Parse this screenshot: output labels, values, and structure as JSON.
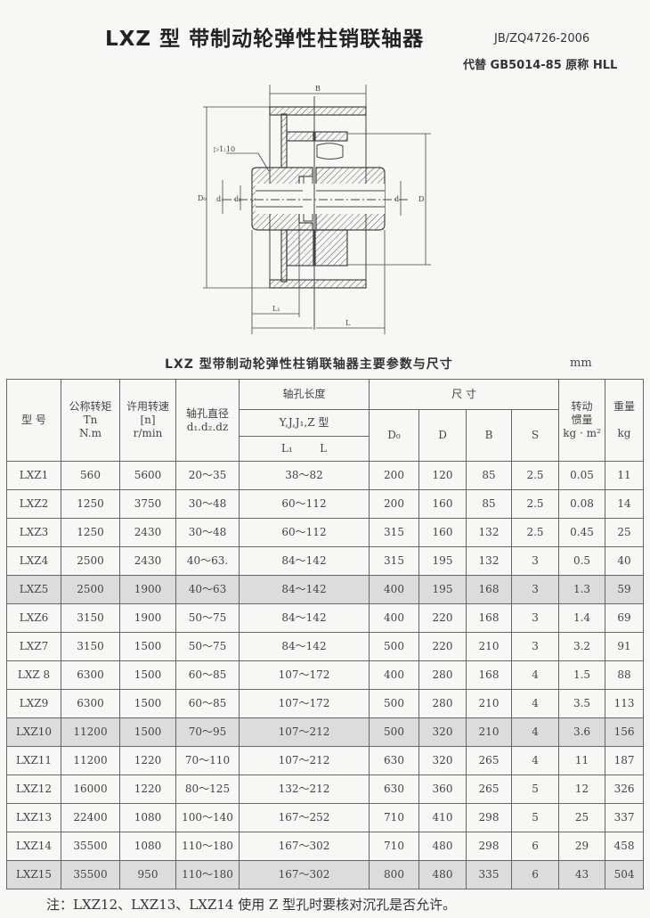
{
  "header": {
    "title": "LXZ 型  带制动轮弹性柱销联轴器",
    "standard": "JB/ZQ4726-2006",
    "replaces": "代替 GB5014-85 原称 HLL"
  },
  "drawing": {
    "labels": {
      "B": "B",
      "taper": "▷1:10",
      "D0": "D₀",
      "d1": "d₁",
      "d2": "d₂",
      "d": "d",
      "D": "D",
      "L1": "L₁",
      "L": "L"
    }
  },
  "table": {
    "caption": "LXZ 型带制动轮弹性柱销联轴器主要参数与尺寸",
    "unit": "mm",
    "headers": {
      "model": "型 号",
      "torque": [
        "公称转矩",
        "Tn",
        "N.m"
      ],
      "speed": [
        "许用转速",
        "[n]",
        "r/min"
      ],
      "bore": [
        "轴孔直径",
        "d₁.d₂.dz"
      ],
      "bore_length": "轴孔长度",
      "bore_type": "Y,J,J₁,Z 型",
      "bore_len_sub": "L₁        L",
      "dimensions": "尺      寸",
      "D0": "D₀",
      "D": "D",
      "B": "B",
      "S": "S",
      "inertia": [
        "转动",
        "惯量",
        "kg · m²"
      ],
      "weight": [
        "重量",
        "kg"
      ]
    },
    "rows": [
      [
        "LXZ1",
        "560",
        "5600",
        "20～35",
        "38～82",
        "200",
        "120",
        "85",
        "2.5",
        "0.05",
        "11"
      ],
      [
        "LXZ2",
        "1250",
        "3750",
        "30～48",
        "60～112",
        "200",
        "160",
        "85",
        "2.5",
        "0.08",
        "14"
      ],
      [
        "LXZ3",
        "1250",
        "2430",
        "30～48",
        "60～112",
        "315",
        "160",
        "132",
        "2.5",
        "0.45",
        "25"
      ],
      [
        "LXZ4",
        "2500",
        "2430",
        "40～63.",
        "84～142",
        "315",
        "195",
        "132",
        "3",
        "0.5",
        "40"
      ],
      [
        "LXZ5",
        "2500",
        "1900",
        "40～63",
        "84～142",
        "400",
        "195",
        "168",
        "3",
        "1.3",
        "59"
      ],
      [
        "LXZ6",
        "3150",
        "1900",
        "50～75",
        "84～142",
        "400",
        "220",
        "168",
        "3",
        "1.4",
        "69"
      ],
      [
        "LXZ7",
        "3150",
        "1500",
        "50～75",
        "84～142",
        "500",
        "220",
        "210",
        "3",
        "3.2",
        "91"
      ],
      [
        "LXZ 8",
        "6300",
        "1500",
        "60～85",
        "107～172",
        "400",
        "280",
        "168",
        "4",
        "1.5",
        "88"
      ],
      [
        "LXZ9",
        "6300",
        "1500",
        "60～85",
        "107～172",
        "500",
        "280",
        "210",
        "4",
        "3.5",
        "113"
      ],
      [
        "LXZ10",
        "11200",
        "1500",
        "70～95",
        "107～212",
        "500",
        "320",
        "210",
        "4",
        "3.6",
        "156"
      ],
      [
        "LXZ11",
        "11200",
        "1220",
        "70～110",
        "107～212",
        "630",
        "320",
        "265",
        "4",
        "11",
        "187"
      ],
      [
        "LXZ12",
        "16000",
        "1220",
        "80～125",
        "132～212",
        "630",
        "360",
        "265",
        "5",
        "12",
        "326"
      ],
      [
        "LXZ13",
        "22400",
        "1080",
        "100～140",
        "167～252",
        "710",
        "410",
        "298",
        "5",
        "25",
        "337"
      ],
      [
        "LXZ14",
        "35500",
        "1080",
        "110～180",
        "167～302",
        "710",
        "480",
        "298",
        "6",
        "29",
        "458"
      ],
      [
        "LXZ15",
        "35500",
        "950",
        "110～180",
        "167～302",
        "800",
        "480",
        "335",
        "6",
        "43",
        "504"
      ]
    ],
    "shaded_rows": [
      "LXZ5",
      "LXZ10",
      "LXZ15"
    ],
    "shade_color": "#dcdcdc"
  },
  "note": "注：LXZ12、LXZ13、LXZ14 使用 Z 型孔时要核对沉孔是否允许。"
}
